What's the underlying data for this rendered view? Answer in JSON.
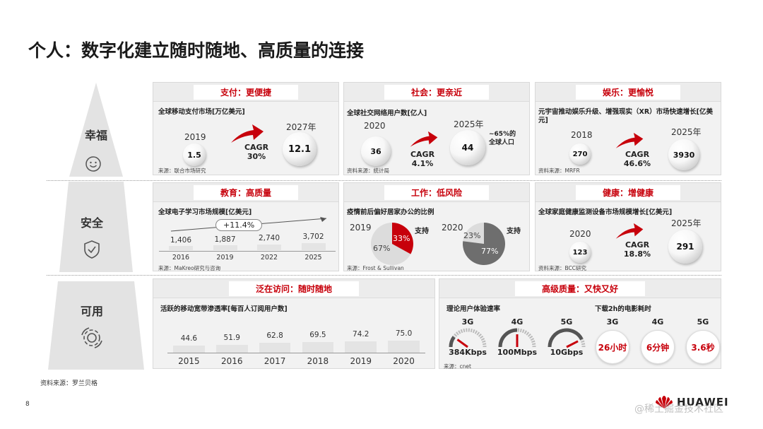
{
  "title": "个人：数字化建立随时随地、高质量的连接",
  "pyramid": [
    {
      "label": "幸福",
      "icon": "smiley-icon"
    },
    {
      "label": "安全",
      "icon": "shield-check-icon"
    },
    {
      "label": "可用",
      "icon": "gear-cycle-icon"
    }
  ],
  "happiness": {
    "payment": {
      "header": "支付：更便捷",
      "subtitle": "全球移动支付市场[万亿美元]",
      "y1": "2019",
      "v1": "1.5",
      "y2": "2027年",
      "v2": "12.1",
      "cagr": "CAGR",
      "cagr_val": "30%",
      "source": "来源：联合市场研究"
    },
    "social": {
      "header": "社会：更亲近",
      "subtitle": "全球社交网络用户数[亿人]",
      "y1": "2020",
      "v1": "36",
      "y2": "2025年",
      "v2": "44",
      "cagr": "CAGR",
      "cagr_val": "4.1%",
      "note": "~65%的\n全球人口",
      "source": "资料来源：统计局"
    },
    "entertainment": {
      "header": "娱乐：更愉悦",
      "subtitle": "元宇宙推动娱乐升级、增强现实（XR）市场快速增长[亿美元]",
      "y1": "2018",
      "v1": "270",
      "y2": "2025年",
      "v2": "3930",
      "cagr": "CAGR",
      "cagr_val": "46.6%",
      "source": "资料来源：MRFR"
    }
  },
  "safety": {
    "education": {
      "header": "教育：高质量",
      "subtitle": "全球电子学习市场规模[亿美元]",
      "growth": "+11.4%",
      "values": [
        "1,406",
        "1,887",
        "2,740",
        "3,702"
      ],
      "years": [
        "2016",
        "2019",
        "2022",
        "2025"
      ],
      "bar_levels": [
        1406,
        1887,
        2740,
        3702
      ],
      "source": "来源：MaKreo研究与咨询"
    },
    "work": {
      "header": "工作：低风险",
      "subtitle": "疫情前后偏好居家办公的比例",
      "y1": "2019",
      "p1_support": "33%",
      "p1_rest": "67%",
      "y2": "2020",
      "p2_support": "77%",
      "p2_rest": "23%",
      "support_label": "支持",
      "source": "来源：Frost & Sullivan"
    },
    "health": {
      "header": "健康：增健康",
      "subtitle": "全球家庭健康监测设备市场规模增长[亿美元]",
      "y1": "2020",
      "v1": "123",
      "y2": "2025年",
      "v2": "291",
      "cagr": "CAGR",
      "cagr_val": "18.8%",
      "source": "资料来源：BCC研究"
    }
  },
  "usable": {
    "access": {
      "header": "泛在访问：随时随地",
      "subtitle": "活跃的移动宽带渗透率[每百人订阅用户数]",
      "values": [
        "44.6",
        "51.9",
        "62.8",
        "69.5",
        "74.2",
        "75.0"
      ],
      "years": [
        "2015",
        "2016",
        "2017",
        "2018",
        "2019",
        "2020"
      ],
      "bar_levels": [
        44.6,
        51.9,
        62.8,
        69.5,
        74.2,
        75.0
      ]
    },
    "quality": {
      "header": "高级质量：又快又好",
      "speed_title": "理论用户体验速率",
      "download_title": "下载2h的电影耗时",
      "speeds": [
        {
          "gen": "3G",
          "value": "384Kbps",
          "level": 0.2
        },
        {
          "gen": "4G",
          "value": "100Mbps",
          "level": 0.5
        },
        {
          "gen": "5G",
          "value": "10Gbps",
          "level": 0.85
        }
      ],
      "downloads": [
        {
          "gen": "3G",
          "value": "26小时",
          "level": 0.05
        },
        {
          "gen": "4G",
          "value": "6分钟",
          "level": 0.1
        },
        {
          "gen": "5G",
          "value": "3.6秒",
          "level": 0.02
        }
      ],
      "source": "来源：cnet"
    }
  },
  "footer_source": "资料来源：罗兰贝格",
  "page_number": "8",
  "brand": "HUAWEI",
  "watermark": "@稀土掘金技术社区",
  "colors": {
    "accent": "#c7000b",
    "panel": "#f2f2f2",
    "pyramid": "#e3e3e3"
  }
}
